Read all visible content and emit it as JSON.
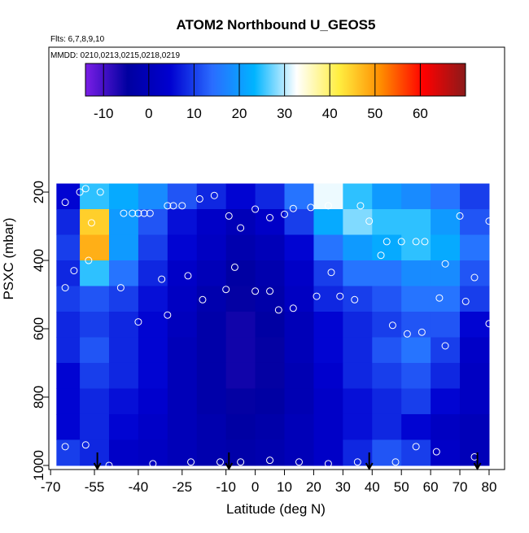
{
  "chart_data": {
    "type": "heatmap",
    "title": "ATOM2 Northbound U_GEOS5",
    "subtitle": "Flts: 6,7,8,9,10",
    "annotation": "MMDD: 0210,0213,0215,0218,0219",
    "xlabel": "Latitude (deg N)",
    "ylabel": "PSXC (mbar)",
    "xlim": [
      -70.6,
      85.3
    ],
    "ylim": [
      1012,
      -224
    ],
    "xticks": [
      -70,
      -55,
      -40,
      -25,
      -10,
      0,
      10,
      20,
      30,
      40,
      50,
      60,
      70,
      80
    ],
    "yticks": [
      200,
      400,
      600,
      800,
      1000
    ],
    "x_edges": [
      -68,
      -60,
      -50,
      -40,
      -30,
      -20,
      -10,
      0,
      10,
      20,
      30,
      40,
      50,
      60,
      70,
      80
    ],
    "y_edges": [
      175,
      250,
      325,
      400,
      475,
      550,
      625,
      700,
      775,
      850,
      925,
      1000
    ],
    "z": [
      [
        5,
        25,
        22,
        18,
        12,
        8,
        5,
        8,
        15,
        32,
        25,
        20,
        18,
        15,
        10
      ],
      [
        8,
        45,
        20,
        12,
        6,
        3,
        0,
        3,
        10,
        22,
        28,
        25,
        25,
        20,
        12
      ],
      [
        10,
        48,
        20,
        10,
        5,
        2,
        -2,
        0,
        5,
        15,
        20,
        22,
        25,
        22,
        15
      ],
      [
        8,
        25,
        15,
        8,
        3,
        0,
        -4,
        -2,
        3,
        10,
        15,
        15,
        18,
        18,
        12
      ],
      [
        10,
        12,
        10,
        6,
        2,
        -2,
        -5,
        -3,
        2,
        8,
        10,
        12,
        15,
        15,
        10
      ],
      [
        8,
        10,
        8,
        5,
        1,
        -3,
        -6,
        -4,
        0,
        5,
        8,
        10,
        12,
        12,
        5
      ],
      [
        8,
        12,
        8,
        5,
        0,
        -3,
        -6,
        -5,
        0,
        5,
        8,
        12,
        15,
        10,
        3
      ],
      [
        5,
        10,
        8,
        5,
        0,
        -3,
        -6,
        -5,
        -1,
        4,
        8,
        10,
        12,
        8,
        2
      ],
      [
        5,
        8,
        6,
        4,
        0,
        -3,
        -5,
        -4,
        -1,
        3,
        6,
        8,
        10,
        5,
        2
      ],
      [
        5,
        8,
        5,
        3,
        0,
        -2,
        -4,
        -3,
        0,
        3,
        6,
        8,
        5,
        2,
        0
      ],
      [
        10,
        8,
        3,
        2,
        0,
        -2,
        -3,
        -2,
        0,
        3,
        8,
        12,
        10,
        3,
        0
      ]
    ],
    "colorbar": {
      "lim": [
        -14,
        70
      ],
      "ticks": [
        -10,
        0,
        10,
        20,
        30,
        40,
        50,
        60
      ],
      "colors": [
        "#7a1ee6",
        "#0000a0",
        "#0000d0",
        "#2a6cff",
        "#00b4ff",
        "#ffffff",
        "#ffee40",
        "#ff8c00",
        "#ff0000",
        "#8b1a1a"
      ]
    },
    "points": {
      "color": "#ffffff",
      "x": [
        -65,
        -60,
        -58,
        -53,
        -45,
        -42,
        -40,
        -38,
        -36,
        -30,
        -28,
        -25,
        -19,
        -14,
        -9,
        -5,
        0,
        5,
        10,
        13,
        19,
        25,
        36,
        39,
        45,
        50,
        55,
        58,
        70,
        80,
        -56,
        -57,
        -62,
        -65,
        -46,
        -32,
        -23,
        -7,
        -18,
        -10,
        0,
        5,
        8,
        13,
        21,
        26,
        29,
        34,
        43,
        47,
        52,
        57,
        63,
        65,
        72,
        75,
        80,
        65,
        -40,
        -30,
        -65,
        -58,
        -50,
        -35,
        -22,
        -12,
        -5,
        5,
        15,
        25,
        35,
        48,
        55,
        62,
        75
      ],
      "y": [
        230,
        200,
        190,
        200,
        262,
        262,
        262,
        262,
        262,
        240,
        240,
        240,
        220,
        210,
        270,
        305,
        250,
        275,
        265,
        248,
        245,
        240,
        240,
        285,
        345,
        345,
        345,
        345,
        270,
        285,
        290,
        400,
        430,
        480,
        480,
        455,
        445,
        420,
        515,
        485,
        490,
        490,
        545,
        540,
        505,
        435,
        505,
        515,
        385,
        590,
        615,
        610,
        510,
        410,
        520,
        450,
        585,
        650,
        580,
        560,
        945,
        940,
        1000,
        995,
        990,
        990,
        990,
        985,
        990,
        995,
        990,
        990,
        945,
        960,
        975
      ]
    },
    "arrows_x": [
      -54,
      -9,
      39,
      76
    ]
  }
}
